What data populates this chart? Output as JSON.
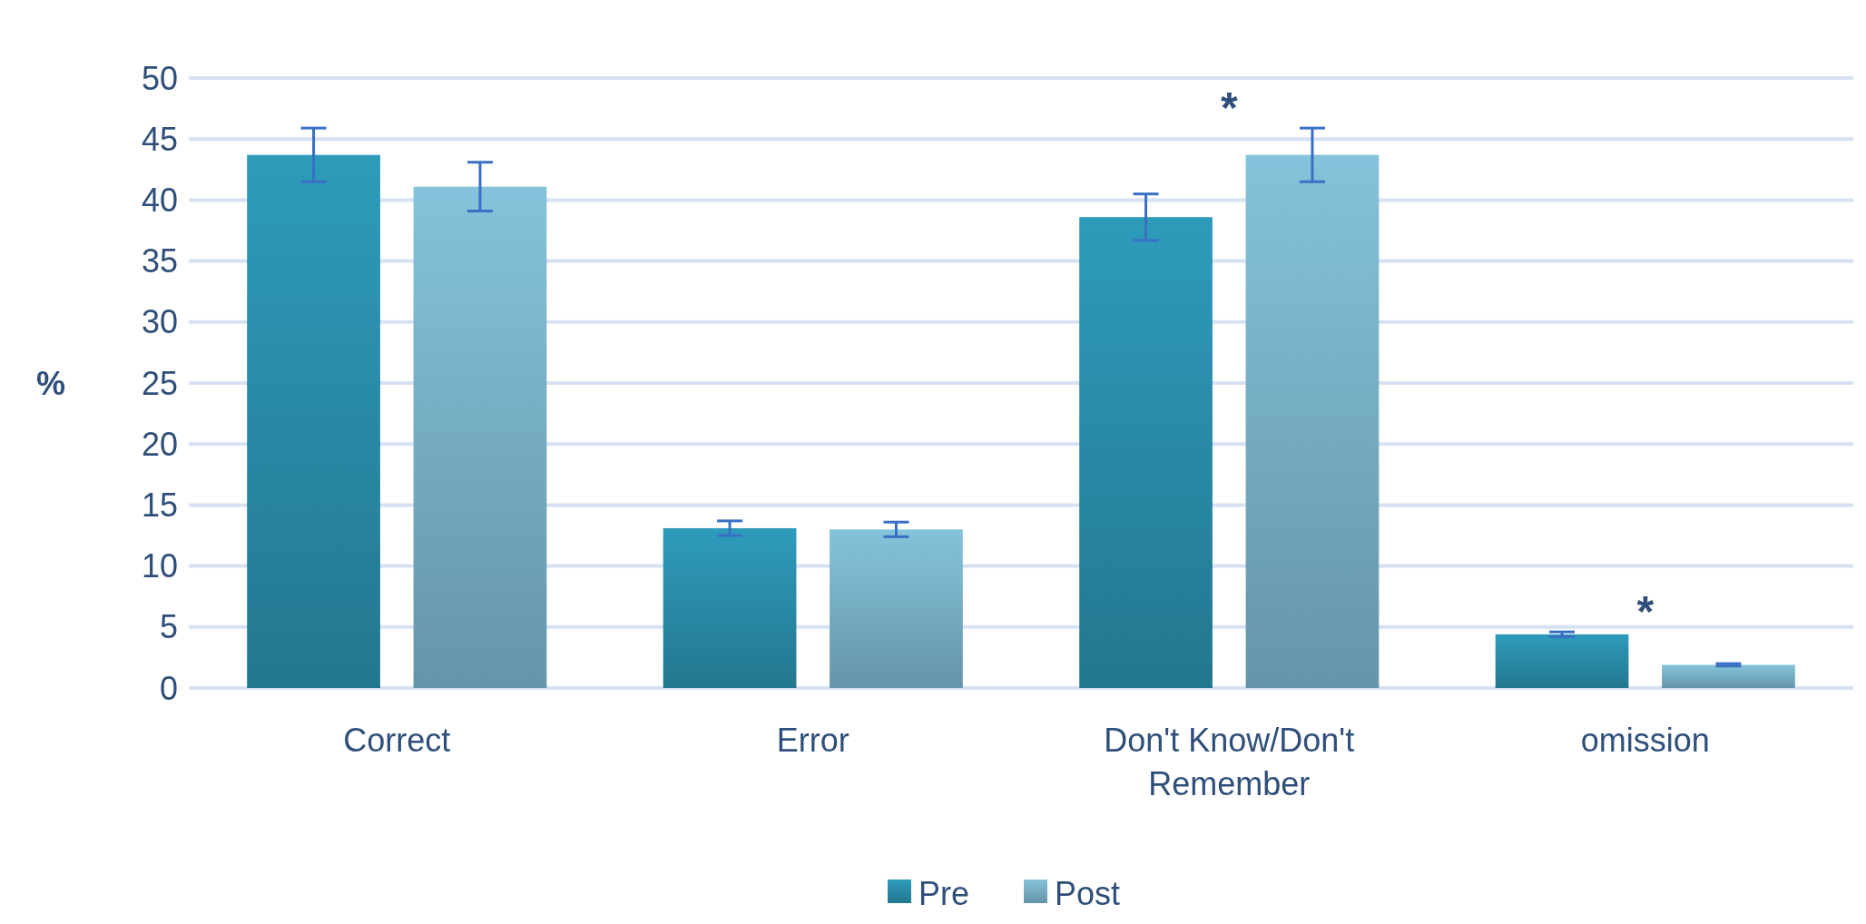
{
  "chart_data": {
    "type": "bar",
    "ylabel": "%",
    "categories": [
      "Correct",
      "Error",
      "Don't Know/Don't Remember",
      "omission"
    ],
    "series": [
      {
        "name": "Pre",
        "color": "#2e9bbb",
        "values": [
          43.7,
          13.1,
          38.6,
          4.4
        ],
        "errors": [
          2.2,
          0.6,
          1.9,
          0.2
        ]
      },
      {
        "name": "Post",
        "color": "#84c3db",
        "values": [
          41.1,
          13.0,
          43.7,
          1.9
        ],
        "errors": [
          2.0,
          0.6,
          2.2,
          0.1
        ]
      }
    ],
    "ylim": [
      0,
      50
    ],
    "yticks": [
      0,
      5,
      10,
      15,
      20,
      25,
      30,
      35,
      40,
      45,
      50
    ],
    "grid": "y",
    "legend": "bottom",
    "annotations": [
      "*",
      "*"
    ]
  }
}
